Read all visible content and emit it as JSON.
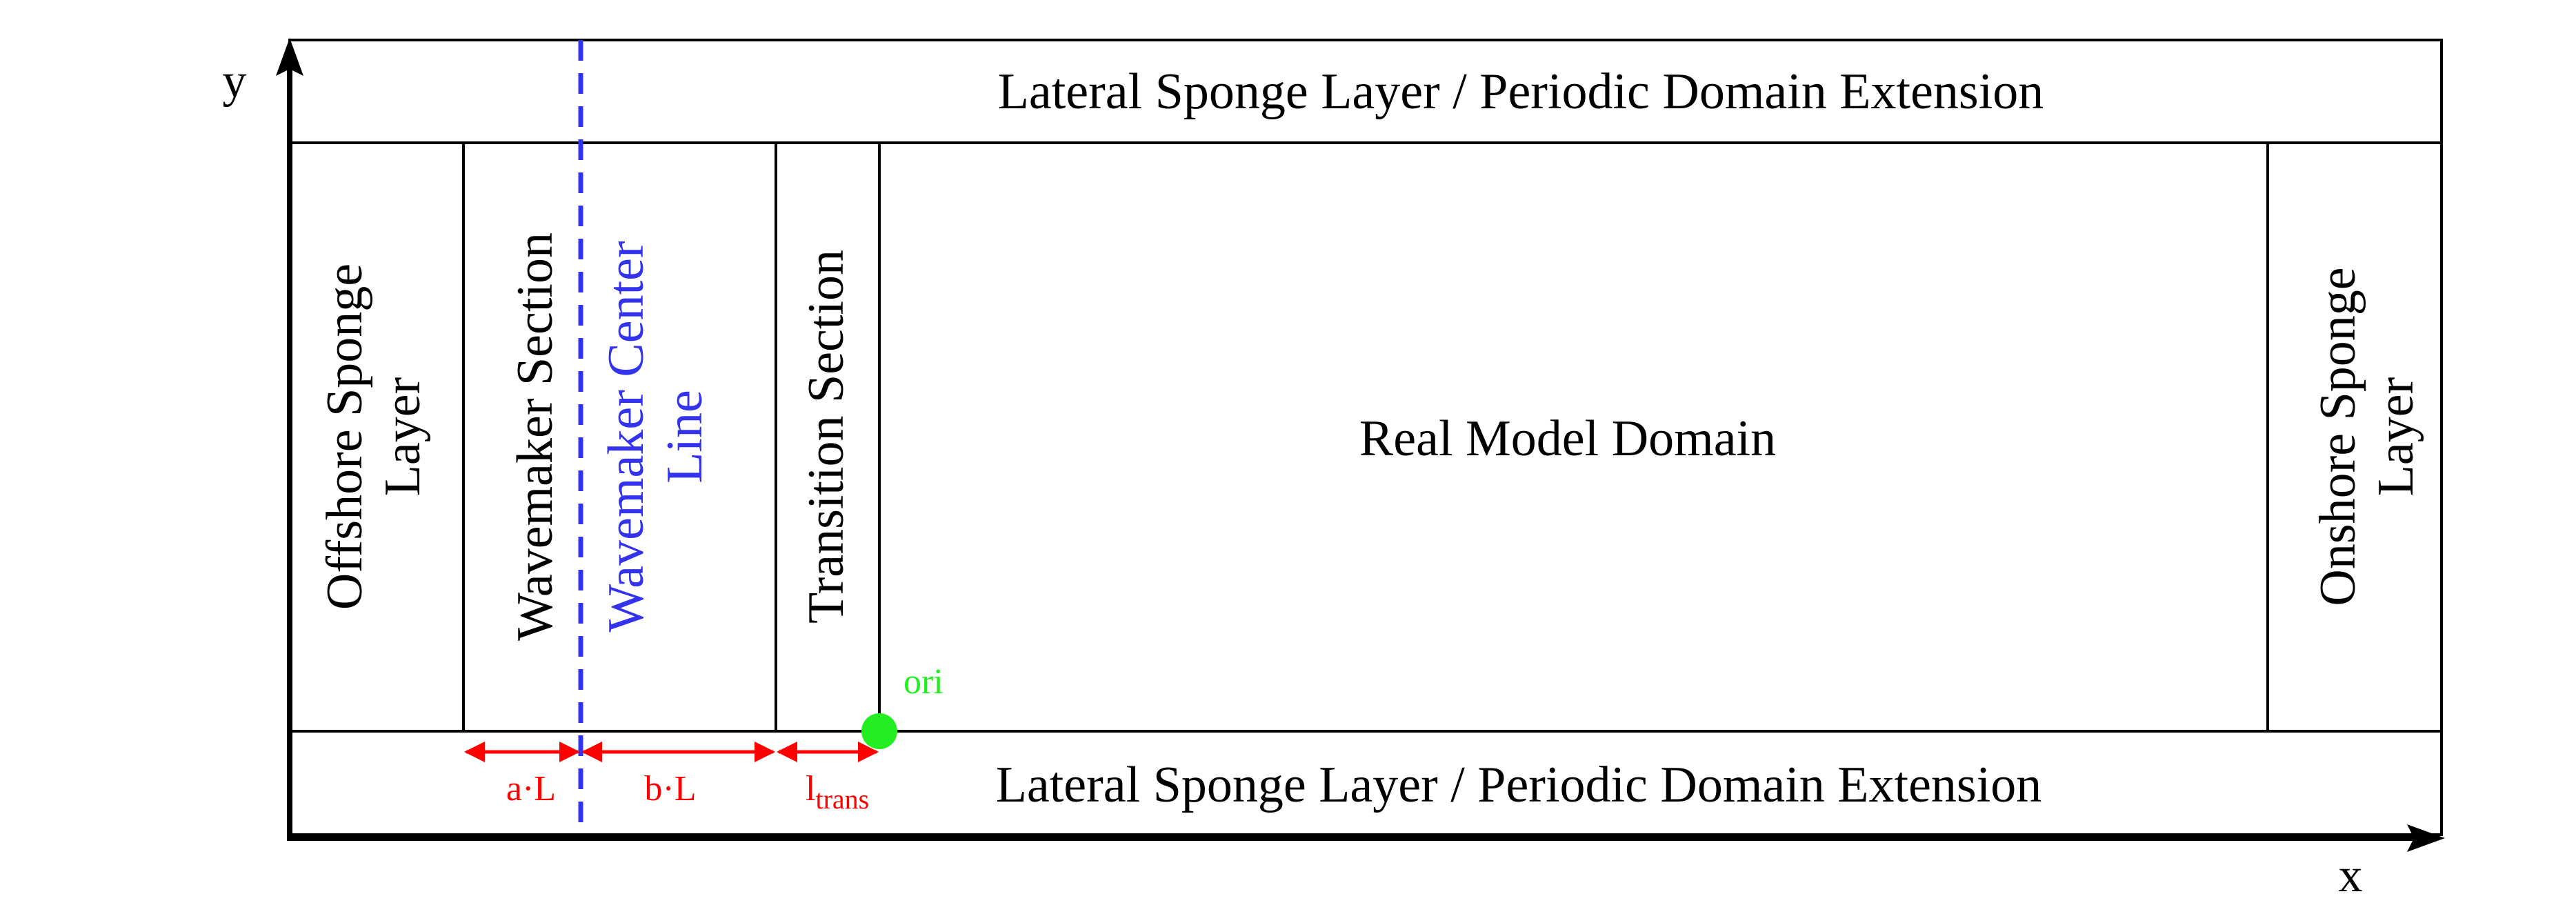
{
  "axes": {
    "x_label": "x",
    "y_label": "y"
  },
  "regions": {
    "lateral_top": "Lateral Sponge Layer / Periodic Domain Extension",
    "lateral_bottom": "Lateral Sponge Layer / Periodic Domain Extension",
    "offshore_line1": "Offshore Sponge",
    "offshore_line2": "Layer",
    "wavemaker_section": "Wavemaker Section",
    "center_line1": "Wavemaker Center",
    "center_line2": "Line",
    "transition": "Transition Section",
    "real_domain": "Real Model Domain",
    "onshore_line1": "Onshore Sponge",
    "onshore_line2": "Layer"
  },
  "markers": {
    "origin": "ori",
    "a_length": "a·L",
    "b_length": "b·L",
    "l_trans_main": "l",
    "l_trans_sub": "trans"
  },
  "colors": {
    "center_line": "#3333ee",
    "dimension": "#ff0000",
    "origin": "#22ee22"
  }
}
